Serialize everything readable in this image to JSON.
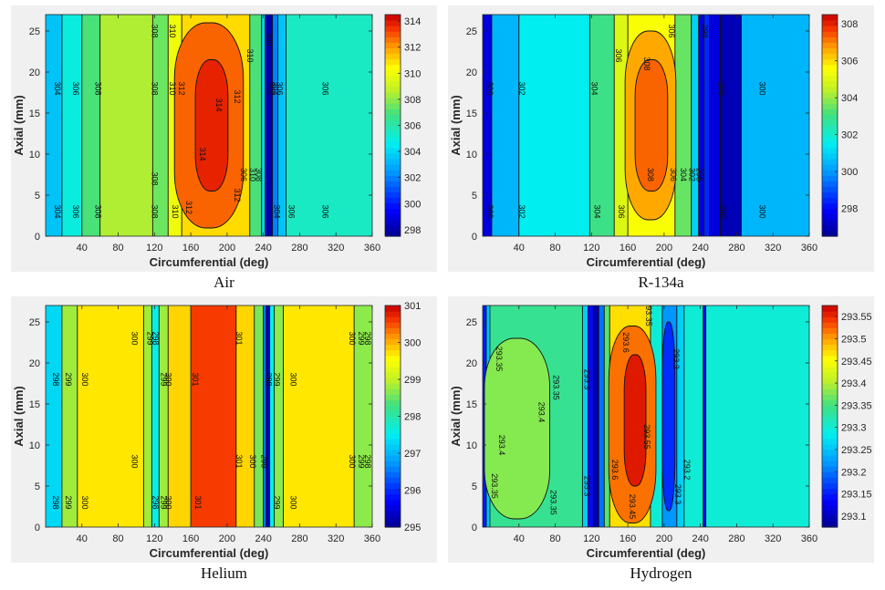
{
  "chart_data": [
    {
      "type": "heatmap",
      "caption": "Air",
      "xlabel": "Circumferential (deg)",
      "ylabel": "Axial (mm)",
      "xlim": [
        0,
        360
      ],
      "ylim": [
        0,
        27
      ],
      "xticks": [
        "40",
        "80",
        "120",
        "160",
        "200",
        "240",
        "280",
        "320",
        "360"
      ],
      "yticks": [
        "0",
        "5",
        "10",
        "15",
        "20",
        "25"
      ],
      "colorbar": {
        "min": 297.5,
        "max": 314.5,
        "ticks": [
          "298",
          "300",
          "302",
          "304",
          "306",
          "308",
          "310",
          "312",
          "314"
        ]
      },
      "bands": [
        {
          "x0": 0,
          "x1": 18,
          "value": 303.5
        },
        {
          "x0": 18,
          "x1": 40,
          "value": 305
        },
        {
          "x0": 40,
          "x1": 60,
          "value": 307
        },
        {
          "x0": 60,
          "x1": 118,
          "value": 308.5
        },
        {
          "x0": 118,
          "x1": 135,
          "value": 307.5
        },
        {
          "x0": 135,
          "x1": 150,
          "value": 310
        },
        {
          "x0": 150,
          "x1": 225,
          "value": 311
        },
        {
          "x0": 225,
          "x1": 238,
          "value": 307
        },
        {
          "x0": 238,
          "x1": 242,
          "value": 304
        },
        {
          "x0": 242,
          "x1": 250,
          "value": 298
        },
        {
          "x0": 250,
          "x1": 256,
          "value": 302
        },
        {
          "x0": 256,
          "x1": 265,
          "value": 303.5
        },
        {
          "x0": 265,
          "x1": 360,
          "value": 305.5
        }
      ],
      "ovals": [
        {
          "cx": 180,
          "cy": 13.5,
          "rx": 38,
          "ry": 12.5,
          "value": 312.8
        },
        {
          "cx": 183,
          "cy": 13.5,
          "rx": 18,
          "ry": 8,
          "value": 313.8
        }
      ],
      "contour_labels": [
        {
          "text": "304",
          "x": 10,
          "y": 18
        },
        {
          "text": "306",
          "x": 30,
          "y": 18
        },
        {
          "text": "308",
          "x": 55,
          "y": 18
        },
        {
          "text": "304",
          "x": 10,
          "y": 3
        },
        {
          "text": "306",
          "x": 30,
          "y": 3
        },
        {
          "text": "308",
          "x": 55,
          "y": 3
        },
        {
          "text": "308",
          "x": 117,
          "y": 25
        },
        {
          "text": "308",
          "x": 117,
          "y": 18
        },
        {
          "text": "308",
          "x": 117,
          "y": 7
        },
        {
          "text": "308",
          "x": 117,
          "y": 3
        },
        {
          "text": "310",
          "x": 137,
          "y": 25
        },
        {
          "text": "310",
          "x": 137,
          "y": 18
        },
        {
          "text": "310",
          "x": 140,
          "y": 3
        },
        {
          "text": "312",
          "x": 147,
          "y": 18
        },
        {
          "text": "312",
          "x": 155,
          "y": 3.5
        },
        {
          "text": "314",
          "x": 188,
          "y": 16
        },
        {
          "text": "314",
          "x": 170,
          "y": 10
        },
        {
          "text": "312",
          "x": 208,
          "y": 17
        },
        {
          "text": "312",
          "x": 208,
          "y": 5
        },
        {
          "text": "310",
          "x": 222,
          "y": 22
        },
        {
          "text": "310",
          "x": 225,
          "y": 7.5
        },
        {
          "text": "308",
          "x": 232,
          "y": 7.5
        },
        {
          "text": "306",
          "x": 215,
          "y": 7.5
        },
        {
          "text": "306",
          "x": 255,
          "y": 18
        },
        {
          "text": "306",
          "x": 268,
          "y": 3
        },
        {
          "text": "304",
          "x": 250,
          "y": 18
        },
        {
          "text": "302",
          "x": 246,
          "y": 18
        },
        {
          "text": "300",
          "x": 244,
          "y": 24
        },
        {
          "text": "304",
          "x": 252,
          "y": 3
        },
        {
          "text": "306",
          "x": 305,
          "y": 18
        },
        {
          "text": "306",
          "x": 305,
          "y": 3
        }
      ]
    },
    {
      "type": "heatmap",
      "caption": "R-134a",
      "xlabel": "Circumferential (deg)",
      "ylabel": "Axial (mm)",
      "xlim": [
        0,
        360
      ],
      "ylim": [
        0,
        27
      ],
      "xticks": [
        "40",
        "80",
        "120",
        "160",
        "200",
        "240",
        "280",
        "320",
        "360"
      ],
      "yticks": [
        "0",
        "5",
        "10",
        "15",
        "20",
        "25"
      ],
      "colorbar": {
        "min": 296.5,
        "max": 308.5,
        "ticks": [
          "298",
          "300",
          "302",
          "304",
          "306",
          "308"
        ]
      },
      "bands": [
        {
          "x0": 0,
          "x1": 10,
          "value": 297.5
        },
        {
          "x0": 10,
          "x1": 40,
          "value": 300.5
        },
        {
          "x0": 40,
          "x1": 118,
          "value": 301.5
        },
        {
          "x0": 118,
          "x1": 145,
          "value": 303
        },
        {
          "x0": 145,
          "x1": 160,
          "value": 305
        },
        {
          "x0": 160,
          "x1": 212,
          "value": 305.5
        },
        {
          "x0": 212,
          "x1": 230,
          "value": 303.5
        },
        {
          "x0": 230,
          "x1": 238,
          "value": 301
        },
        {
          "x0": 238,
          "x1": 244,
          "value": 297.5
        },
        {
          "x0": 244,
          "x1": 250,
          "value": 298.5
        },
        {
          "x0": 250,
          "x1": 262,
          "value": 297.5
        },
        {
          "x0": 262,
          "x1": 285,
          "value": 297
        },
        {
          "x0": 285,
          "x1": 360,
          "value": 300.5
        }
      ],
      "ovals": [
        {
          "cx": 185,
          "cy": 13.5,
          "rx": 28,
          "ry": 11.5,
          "value": 306.6
        },
        {
          "cx": 186,
          "cy": 13.5,
          "rx": 18,
          "ry": 8,
          "value": 307.3
        }
      ],
      "contour_labels": [
        {
          "text": "300",
          "x": 5,
          "y": 18
        },
        {
          "text": "302",
          "x": 40,
          "y": 18
        },
        {
          "text": "300",
          "x": 5,
          "y": 3
        },
        {
          "text": "302",
          "x": 40,
          "y": 3
        },
        {
          "text": "304",
          "x": 120,
          "y": 18
        },
        {
          "text": "304",
          "x": 123,
          "y": 3
        },
        {
          "text": "306",
          "x": 147,
          "y": 22
        },
        {
          "text": "306",
          "x": 150,
          "y": 3
        },
        {
          "text": "308",
          "x": 178,
          "y": 21
        },
        {
          "text": "308",
          "x": 182,
          "y": 7.5
        },
        {
          "text": "306",
          "x": 205,
          "y": 25
        },
        {
          "text": "306",
          "x": 207,
          "y": 7.5
        },
        {
          "text": "304",
          "x": 218,
          "y": 7.5
        },
        {
          "text": "302",
          "x": 228,
          "y": 7.5
        },
        {
          "text": "298",
          "x": 236,
          "y": 7.5
        },
        {
          "text": "298",
          "x": 242,
          "y": 25
        },
        {
          "text": "298",
          "x": 260,
          "y": 18
        },
        {
          "text": "298",
          "x": 262,
          "y": 3
        },
        {
          "text": "300",
          "x": 305,
          "y": 18
        },
        {
          "text": "300",
          "x": 305,
          "y": 3
        }
      ]
    },
    {
      "type": "heatmap",
      "caption": "Helium",
      "xlabel": "Circumferential (deg)",
      "ylabel": "Axial (mm)",
      "xlim": [
        0,
        360
      ],
      "ylim": [
        0,
        27
      ],
      "xticks": [
        "40",
        "80",
        "120",
        "160",
        "200",
        "240",
        "280",
        "320",
        "360"
      ],
      "yticks": [
        "0",
        "5",
        "10",
        "15",
        "20",
        "25"
      ],
      "colorbar": {
        "min": 295,
        "max": 301,
        "ticks": [
          "295",
          "296",
          "297",
          "298",
          "299",
          "300",
          "301"
        ]
      },
      "bands": [
        {
          "x0": 0,
          "x1": 18,
          "value": 297.3
        },
        {
          "x0": 18,
          "x1": 35,
          "value": 298.8
        },
        {
          "x0": 35,
          "x1": 108,
          "value": 299.7
        },
        {
          "x0": 108,
          "x1": 117,
          "value": 298.8
        },
        {
          "x0": 117,
          "x1": 125,
          "value": 297.6
        },
        {
          "x0": 125,
          "x1": 135,
          "value": 298.8
        },
        {
          "x0": 135,
          "x1": 160,
          "value": 299.8
        },
        {
          "x0": 160,
          "x1": 210,
          "value": 300.6
        },
        {
          "x0": 210,
          "x1": 230,
          "value": 299.8
        },
        {
          "x0": 230,
          "x1": 240,
          "value": 298.6
        },
        {
          "x0": 240,
          "x1": 243,
          "value": 296.6
        },
        {
          "x0": 243,
          "x1": 247,
          "value": 295.3
        },
        {
          "x0": 247,
          "x1": 252,
          "value": 297.6
        },
        {
          "x0": 252,
          "x1": 262,
          "value": 298.7
        },
        {
          "x0": 262,
          "x1": 340,
          "value": 299.7
        },
        {
          "x0": 340,
          "x1": 360,
          "value": 298.7
        }
      ],
      "ovals": [],
      "contour_labels": [
        {
          "text": "298",
          "x": 8,
          "y": 18
        },
        {
          "text": "299",
          "x": 22,
          "y": 18
        },
        {
          "text": "300",
          "x": 40,
          "y": 18
        },
        {
          "text": "298",
          "x": 8,
          "y": 3
        },
        {
          "text": "299",
          "x": 22,
          "y": 3
        },
        {
          "text": "300",
          "x": 40,
          "y": 3
        },
        {
          "text": "300",
          "x": 95,
          "y": 23
        },
        {
          "text": "299",
          "x": 112,
          "y": 23
        },
        {
          "text": "298",
          "x": 118,
          "y": 23
        },
        {
          "text": "300",
          "x": 95,
          "y": 8
        },
        {
          "text": "298",
          "x": 118,
          "y": 3
        },
        {
          "text": "299",
          "x": 127,
          "y": 18
        },
        {
          "text": "300",
          "x": 132,
          "y": 18
        },
        {
          "text": "299",
          "x": 127,
          "y": 3
        },
        {
          "text": "300",
          "x": 132,
          "y": 3
        },
        {
          "text": "301",
          "x": 162,
          "y": 18
        },
        {
          "text": "301",
          "x": 165,
          "y": 3
        },
        {
          "text": "301",
          "x": 210,
          "y": 23
        },
        {
          "text": "301",
          "x": 210,
          "y": 8
        },
        {
          "text": "300",
          "x": 225,
          "y": 8
        },
        {
          "text": "299",
          "x": 238,
          "y": 8
        },
        {
          "text": "298",
          "x": 243,
          "y": 18
        },
        {
          "text": "299",
          "x": 252,
          "y": 18
        },
        {
          "text": "299",
          "x": 252,
          "y": 3
        },
        {
          "text": "300",
          "x": 270,
          "y": 18
        },
        {
          "text": "300",
          "x": 270,
          "y": 3
        },
        {
          "text": "300",
          "x": 335,
          "y": 23
        },
        {
          "text": "299",
          "x": 345,
          "y": 23
        },
        {
          "text": "298",
          "x": 352,
          "y": 23
        },
        {
          "text": "300",
          "x": 335,
          "y": 8
        },
        {
          "text": "299",
          "x": 345,
          "y": 8
        },
        {
          "text": "298",
          "x": 352,
          "y": 8
        }
      ]
    },
    {
      "type": "heatmap",
      "caption": "Hydrogen",
      "xlabel": "Circumferential (deg)",
      "ylabel": "Axial (mm)",
      "xlim": [
        0,
        360
      ],
      "ylim": [
        0,
        27
      ],
      "xticks": [
        "40",
        "80",
        "120",
        "160",
        "200",
        "240",
        "280",
        "320",
        "360"
      ],
      "yticks": [
        "0",
        "5",
        "10",
        "15",
        "20",
        "25"
      ],
      "colorbar": {
        "min": 293.075,
        "max": 293.575,
        "ticks": [
          "293.1",
          "293.15",
          "293.2",
          "293.25",
          "293.3",
          "293.35",
          "293.4",
          "293.45",
          "293.5",
          "293.55"
        ]
      },
      "bands": [
        {
          "x0": 0,
          "x1": 4,
          "value": 293.15
        },
        {
          "x0": 4,
          "x1": 8,
          "value": 293.25
        },
        {
          "x0": 8,
          "x1": 110,
          "value": 293.34
        },
        {
          "x0": 110,
          "x1": 116,
          "value": 293.26
        },
        {
          "x0": 116,
          "x1": 122,
          "value": 293.14
        },
        {
          "x0": 122,
          "x1": 128,
          "value": 293.09
        },
        {
          "x0": 128,
          "x1": 134,
          "value": 293.2
        },
        {
          "x0": 134,
          "x1": 140,
          "value": 293.36
        },
        {
          "x0": 140,
          "x1": 185,
          "value": 293.47
        },
        {
          "x0": 185,
          "x1": 198,
          "value": 293.3
        },
        {
          "x0": 198,
          "x1": 214,
          "value": 293.22
        },
        {
          "x0": 214,
          "x1": 222,
          "value": 293.26
        },
        {
          "x0": 222,
          "x1": 243,
          "value": 293.3
        },
        {
          "x0": 243,
          "x1": 246,
          "value": 293.12
        },
        {
          "x0": 246,
          "x1": 360,
          "value": 293.3
        }
      ],
      "ovals": [
        {
          "cx": 38,
          "cy": 12,
          "rx": 36,
          "ry": 11,
          "value": 293.38
        },
        {
          "cx": 165,
          "cy": 12.5,
          "rx": 26,
          "ry": 12,
          "value": 293.52
        },
        {
          "cx": 168,
          "cy": 13,
          "rx": 12,
          "ry": 8,
          "value": 293.56
        },
        {
          "cx": 205,
          "cy": 13.5,
          "rx": 7,
          "ry": 11.5,
          "value": 293.16
        }
      ],
      "contour_labels": [
        {
          "text": "293.35",
          "x": 15,
          "y": 20.5
        },
        {
          "text": "293.4",
          "x": 62,
          "y": 14
        },
        {
          "text": "293.35",
          "x": 78,
          "y": 17
        },
        {
          "text": "293.4",
          "x": 18,
          "y": 10
        },
        {
          "text": "293.35",
          "x": 10,
          "y": 5
        },
        {
          "text": "293.35",
          "x": 75,
          "y": 3
        },
        {
          "text": "293.3",
          "x": 112,
          "y": 18
        },
        {
          "text": "293.3",
          "x": 112,
          "y": 5
        },
        {
          "text": "293.35",
          "x": 180,
          "y": 26
        },
        {
          "text": "293.6",
          "x": 155,
          "y": 22.5
        },
        {
          "text": "293.55",
          "x": 178,
          "y": 11
        },
        {
          "text": "293.6",
          "x": 143,
          "y": 7
        },
        {
          "text": "293.45",
          "x": 162,
          "y": 2.5
        },
        {
          "text": "293.3",
          "x": 210,
          "y": 20.5
        },
        {
          "text": "293.3",
          "x": 212,
          "y": 4
        },
        {
          "text": "293.2",
          "x": 222,
          "y": 7
        }
      ]
    }
  ]
}
